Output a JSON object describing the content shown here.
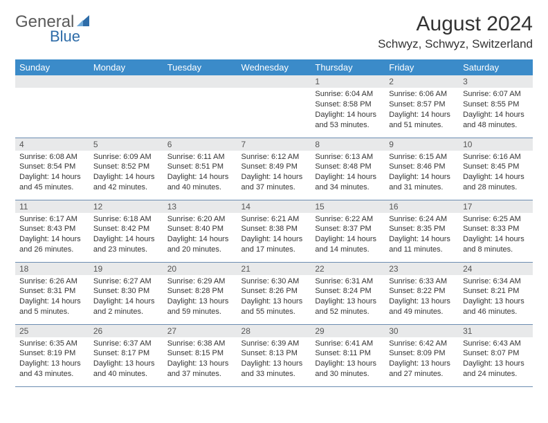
{
  "logo": {
    "word1": "General",
    "word2": "Blue"
  },
  "header": {
    "month_title": "August 2024",
    "location": "Schwyz, Schwyz, Switzerland"
  },
  "colors": {
    "header_bg": "#3b8bc9",
    "daynum_bg": "#e8e9ea",
    "row_border": "#6a8bb0",
    "logo_blue": "#2e6ca8",
    "text": "#333333"
  },
  "days_of_week": [
    "Sunday",
    "Monday",
    "Tuesday",
    "Wednesday",
    "Thursday",
    "Friday",
    "Saturday"
  ],
  "weeks": [
    [
      null,
      null,
      null,
      null,
      {
        "n": "1",
        "sr": "Sunrise: 6:04 AM",
        "ss": "Sunset: 8:58 PM",
        "dl": "Daylight: 14 hours and 53 minutes."
      },
      {
        "n": "2",
        "sr": "Sunrise: 6:06 AM",
        "ss": "Sunset: 8:57 PM",
        "dl": "Daylight: 14 hours and 51 minutes."
      },
      {
        "n": "3",
        "sr": "Sunrise: 6:07 AM",
        "ss": "Sunset: 8:55 PM",
        "dl": "Daylight: 14 hours and 48 minutes."
      }
    ],
    [
      {
        "n": "4",
        "sr": "Sunrise: 6:08 AM",
        "ss": "Sunset: 8:54 PM",
        "dl": "Daylight: 14 hours and 45 minutes."
      },
      {
        "n": "5",
        "sr": "Sunrise: 6:09 AM",
        "ss": "Sunset: 8:52 PM",
        "dl": "Daylight: 14 hours and 42 minutes."
      },
      {
        "n": "6",
        "sr": "Sunrise: 6:11 AM",
        "ss": "Sunset: 8:51 PM",
        "dl": "Daylight: 14 hours and 40 minutes."
      },
      {
        "n": "7",
        "sr": "Sunrise: 6:12 AM",
        "ss": "Sunset: 8:49 PM",
        "dl": "Daylight: 14 hours and 37 minutes."
      },
      {
        "n": "8",
        "sr": "Sunrise: 6:13 AM",
        "ss": "Sunset: 8:48 PM",
        "dl": "Daylight: 14 hours and 34 minutes."
      },
      {
        "n": "9",
        "sr": "Sunrise: 6:15 AM",
        "ss": "Sunset: 8:46 PM",
        "dl": "Daylight: 14 hours and 31 minutes."
      },
      {
        "n": "10",
        "sr": "Sunrise: 6:16 AM",
        "ss": "Sunset: 8:45 PM",
        "dl": "Daylight: 14 hours and 28 minutes."
      }
    ],
    [
      {
        "n": "11",
        "sr": "Sunrise: 6:17 AM",
        "ss": "Sunset: 8:43 PM",
        "dl": "Daylight: 14 hours and 26 minutes."
      },
      {
        "n": "12",
        "sr": "Sunrise: 6:18 AM",
        "ss": "Sunset: 8:42 PM",
        "dl": "Daylight: 14 hours and 23 minutes."
      },
      {
        "n": "13",
        "sr": "Sunrise: 6:20 AM",
        "ss": "Sunset: 8:40 PM",
        "dl": "Daylight: 14 hours and 20 minutes."
      },
      {
        "n": "14",
        "sr": "Sunrise: 6:21 AM",
        "ss": "Sunset: 8:38 PM",
        "dl": "Daylight: 14 hours and 17 minutes."
      },
      {
        "n": "15",
        "sr": "Sunrise: 6:22 AM",
        "ss": "Sunset: 8:37 PM",
        "dl": "Daylight: 14 hours and 14 minutes."
      },
      {
        "n": "16",
        "sr": "Sunrise: 6:24 AM",
        "ss": "Sunset: 8:35 PM",
        "dl": "Daylight: 14 hours and 11 minutes."
      },
      {
        "n": "17",
        "sr": "Sunrise: 6:25 AM",
        "ss": "Sunset: 8:33 PM",
        "dl": "Daylight: 14 hours and 8 minutes."
      }
    ],
    [
      {
        "n": "18",
        "sr": "Sunrise: 6:26 AM",
        "ss": "Sunset: 8:31 PM",
        "dl": "Daylight: 14 hours and 5 minutes."
      },
      {
        "n": "19",
        "sr": "Sunrise: 6:27 AM",
        "ss": "Sunset: 8:30 PM",
        "dl": "Daylight: 14 hours and 2 minutes."
      },
      {
        "n": "20",
        "sr": "Sunrise: 6:29 AM",
        "ss": "Sunset: 8:28 PM",
        "dl": "Daylight: 13 hours and 59 minutes."
      },
      {
        "n": "21",
        "sr": "Sunrise: 6:30 AM",
        "ss": "Sunset: 8:26 PM",
        "dl": "Daylight: 13 hours and 55 minutes."
      },
      {
        "n": "22",
        "sr": "Sunrise: 6:31 AM",
        "ss": "Sunset: 8:24 PM",
        "dl": "Daylight: 13 hours and 52 minutes."
      },
      {
        "n": "23",
        "sr": "Sunrise: 6:33 AM",
        "ss": "Sunset: 8:22 PM",
        "dl": "Daylight: 13 hours and 49 minutes."
      },
      {
        "n": "24",
        "sr": "Sunrise: 6:34 AM",
        "ss": "Sunset: 8:21 PM",
        "dl": "Daylight: 13 hours and 46 minutes."
      }
    ],
    [
      {
        "n": "25",
        "sr": "Sunrise: 6:35 AM",
        "ss": "Sunset: 8:19 PM",
        "dl": "Daylight: 13 hours and 43 minutes."
      },
      {
        "n": "26",
        "sr": "Sunrise: 6:37 AM",
        "ss": "Sunset: 8:17 PM",
        "dl": "Daylight: 13 hours and 40 minutes."
      },
      {
        "n": "27",
        "sr": "Sunrise: 6:38 AM",
        "ss": "Sunset: 8:15 PM",
        "dl": "Daylight: 13 hours and 37 minutes."
      },
      {
        "n": "28",
        "sr": "Sunrise: 6:39 AM",
        "ss": "Sunset: 8:13 PM",
        "dl": "Daylight: 13 hours and 33 minutes."
      },
      {
        "n": "29",
        "sr": "Sunrise: 6:41 AM",
        "ss": "Sunset: 8:11 PM",
        "dl": "Daylight: 13 hours and 30 minutes."
      },
      {
        "n": "30",
        "sr": "Sunrise: 6:42 AM",
        "ss": "Sunset: 8:09 PM",
        "dl": "Daylight: 13 hours and 27 minutes."
      },
      {
        "n": "31",
        "sr": "Sunrise: 6:43 AM",
        "ss": "Sunset: 8:07 PM",
        "dl": "Daylight: 13 hours and 24 minutes."
      }
    ]
  ]
}
